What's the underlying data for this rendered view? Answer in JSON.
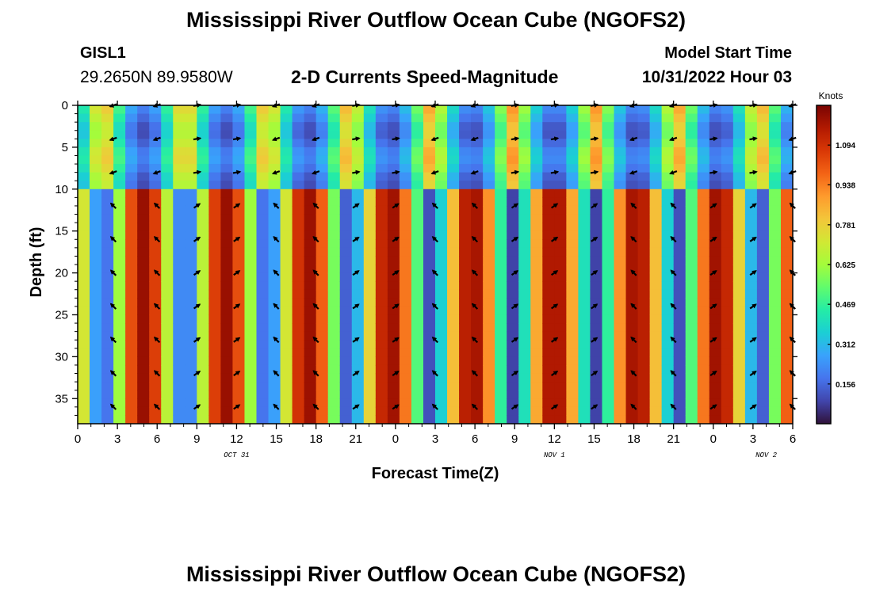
{
  "title": "Mississippi River Outflow Ocean Cube (NGOFS2)",
  "title_repeat": "Mississippi River Outflow Ocean Cube (NGOFS2)",
  "station": {
    "id": "GISL1",
    "coords": "29.2650N  89.9580W"
  },
  "subtitle": "2-D Currents Speed-Magnitude",
  "model_start": {
    "label": "Model Start Time",
    "value": "10/31/2022 Hour 03"
  },
  "chart_data": {
    "type": "heatmap",
    "title": "2-D Currents Speed-Magnitude",
    "xlabel": "Forecast Time(Z)",
    "ylabel": "Depth (ft)",
    "x_unit": "hours since 10/31/2022 00Z",
    "xlim": [
      0,
      54
    ],
    "ylim": [
      38,
      0
    ],
    "x_ticks": [
      {
        "hour": 0,
        "label": "0"
      },
      {
        "hour": 3,
        "label": "3"
      },
      {
        "hour": 6,
        "label": "6"
      },
      {
        "hour": 9,
        "label": "9"
      },
      {
        "hour": 12,
        "label": "12"
      },
      {
        "hour": 15,
        "label": "15"
      },
      {
        "hour": 18,
        "label": "18"
      },
      {
        "hour": 21,
        "label": "21"
      },
      {
        "hour": 24,
        "label": "0"
      },
      {
        "hour": 27,
        "label": "3"
      },
      {
        "hour": 30,
        "label": "6"
      },
      {
        "hour": 33,
        "label": "9"
      },
      {
        "hour": 36,
        "label": "12"
      },
      {
        "hour": 39,
        "label": "15"
      },
      {
        "hour": 42,
        "label": "18"
      },
      {
        "hour": 45,
        "label": "21"
      },
      {
        "hour": 48,
        "label": "0"
      },
      {
        "hour": 51,
        "label": "3"
      },
      {
        "hour": 54,
        "label": "6"
      }
    ],
    "date_labels": [
      {
        "hour": 12,
        "label": "OCT 31"
      },
      {
        "hour": 36,
        "label": "NOV 1"
      },
      {
        "hour": 52,
        "label": "NOV 2"
      }
    ],
    "y_ticks": [
      0,
      5,
      10,
      15,
      20,
      25,
      30,
      35
    ],
    "colorbar": {
      "unit": "Knots",
      "min": 0.0,
      "max": 1.25,
      "ticks": [
        "1.094",
        "0.938",
        "0.781",
        "0.625",
        "0.469",
        "0.312",
        "0.156"
      ],
      "tick_values": [
        1.094,
        0.938,
        0.781,
        0.625,
        0.469,
        0.312,
        0.156
      ]
    },
    "surface_layer_depth_ft": 10,
    "peak_speed_knots": 1.2,
    "peak_times_hours": [
      5,
      17,
      30,
      42,
      55
    ],
    "slack_times_hours": [
      24,
      36,
      48
    ],
    "vector_rows_ft": [
      0,
      4,
      8,
      12,
      16,
      20,
      24,
      28,
      32,
      36
    ],
    "vector_cols_hours": [
      2.7,
      6,
      9,
      12,
      15,
      18,
      21,
      24,
      27,
      30,
      33,
      36,
      39,
      42,
      45,
      48,
      51,
      54
    ]
  },
  "colors": {
    "colormap": [
      "#30123b",
      "#4145ab",
      "#4675ed",
      "#39a2fc",
      "#1bcfd4",
      "#24eca6",
      "#61fc6c",
      "#a4fc3b",
      "#d1e834",
      "#f3c63a",
      "#fe9b2d",
      "#f36315",
      "#d93806",
      "#b11901",
      "#7a0402"
    ],
    "vector": "#000000",
    "frame": "#000000"
  }
}
